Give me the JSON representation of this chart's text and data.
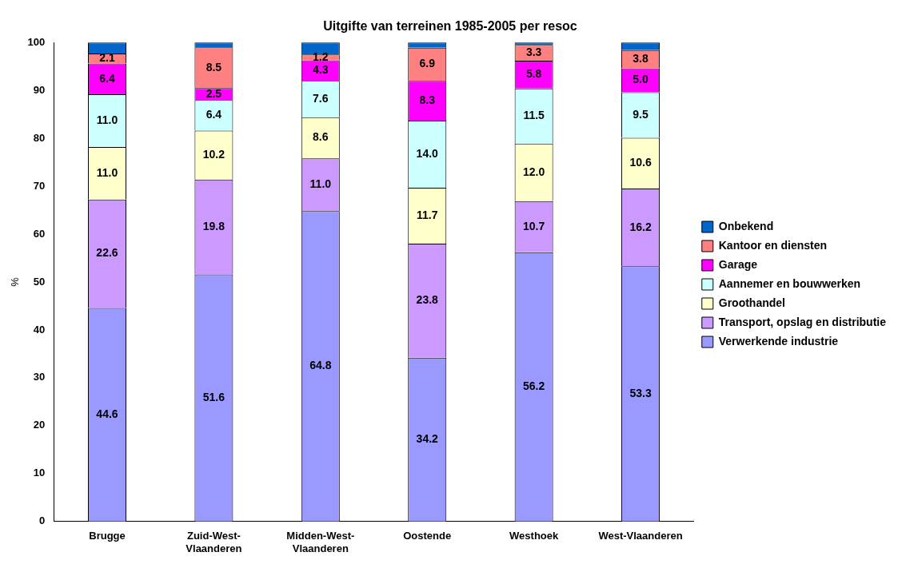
{
  "chart_data": {
    "type": "bar",
    "stacked": true,
    "title": "Uitgifte van terreinen 1985-2005 per resoc",
    "ylabel": "%",
    "categories": [
      "Brugge",
      "Zuid-West-Vlaanderen",
      "Midden-West-Vlaanderen",
      "Oostende",
      "Westhoek",
      "West-Vlaanderen"
    ],
    "ylim": [
      0,
      100
    ],
    "yticks": [
      0,
      10,
      20,
      30,
      40,
      50,
      60,
      70,
      80,
      90,
      100
    ],
    "grid": false,
    "legend": "right",
    "series": [
      {
        "name": "Verwerkende industrie",
        "color": "#9999ff",
        "values": [
          44.6,
          51.6,
          64.8,
          34.2,
          56.2,
          53.3
        ],
        "value_labels": [
          "44.6",
          "51.6",
          "64.8",
          "34.2",
          "56.2",
          "53.3"
        ]
      },
      {
        "name": "Transport, opslag en distributie",
        "color": "#cc99ff",
        "values": [
          22.6,
          19.8,
          11.0,
          23.8,
          10.7,
          16.2
        ],
        "value_labels": [
          "22.6",
          "19.8",
          "11.0",
          "23.8",
          "10.7",
          "16.2"
        ]
      },
      {
        "name": "Groothandel",
        "color": "#ffffcc",
        "values": [
          11.0,
          10.2,
          8.6,
          11.7,
          12.0,
          10.6
        ],
        "value_labels": [
          "11.0",
          "10.2",
          "8.6",
          "11.7",
          "12.0",
          "10.6"
        ]
      },
      {
        "name": "Aannemer en bouwwerken",
        "color": "#ccffff",
        "values": [
          11.0,
          6.4,
          7.6,
          14.0,
          11.5,
          9.5
        ],
        "value_labels": [
          "11.0",
          "6.4",
          "7.6",
          "14.0",
          "11.5",
          "9.5"
        ]
      },
      {
        "name": "Garage",
        "color": "#ff00ff",
        "values": [
          6.4,
          2.5,
          4.3,
          8.3,
          5.8,
          5.0
        ],
        "value_labels": [
          "6.4",
          "2.5",
          "4.3",
          "8.3",
          "5.8",
          "5.0"
        ]
      },
      {
        "name": "Kantoor en diensten",
        "color": "#ff8080",
        "values": [
          2.1,
          8.5,
          1.2,
          6.9,
          3.3,
          3.8
        ],
        "value_labels": [
          "2.1",
          "8.5",
          "1.2",
          "6.9",
          "3.3",
          "3.8"
        ]
      },
      {
        "name": "Onbekend",
        "color": "#0066cc",
        "values": [
          2.3,
          1.0,
          2.5,
          1.1,
          0.5,
          1.6
        ],
        "value_labels": [
          null,
          null,
          null,
          null,
          null,
          null
        ]
      }
    ]
  }
}
